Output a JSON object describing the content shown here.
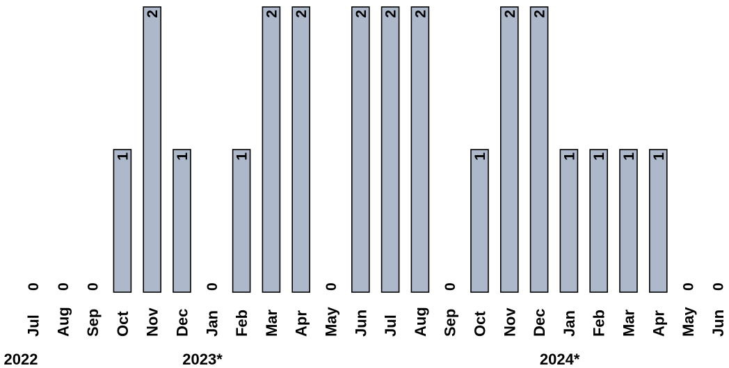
{
  "chart_data": {
    "type": "bar",
    "categories": [
      "Jul",
      "Aug",
      "Sep",
      "Oct",
      "Nov",
      "Dec",
      "Jan",
      "Feb",
      "Mar",
      "Apr",
      "May",
      "Jun",
      "Jul",
      "Aug",
      "Sep",
      "Oct",
      "Nov",
      "Dec",
      "Jan",
      "Feb",
      "Mar",
      "Apr",
      "May",
      "Jun"
    ],
    "values": [
      0,
      0,
      0,
      1,
      2,
      1,
      0,
      1,
      2,
      2,
      0,
      2,
      2,
      2,
      0,
      1,
      2,
      2,
      1,
      1,
      1,
      1,
      0,
      0
    ],
    "year_labels": [
      {
        "text": "2022",
        "category_index": 0
      },
      {
        "text": "2023*",
        "category_index": 6
      },
      {
        "text": "2024*",
        "category_index": 18
      }
    ],
    "ylim": [
      0,
      2
    ],
    "grid": false,
    "title": "",
    "xlabel": "",
    "ylabel": "",
    "bar_color": "#adb8ca",
    "outline_color": "#000000"
  }
}
